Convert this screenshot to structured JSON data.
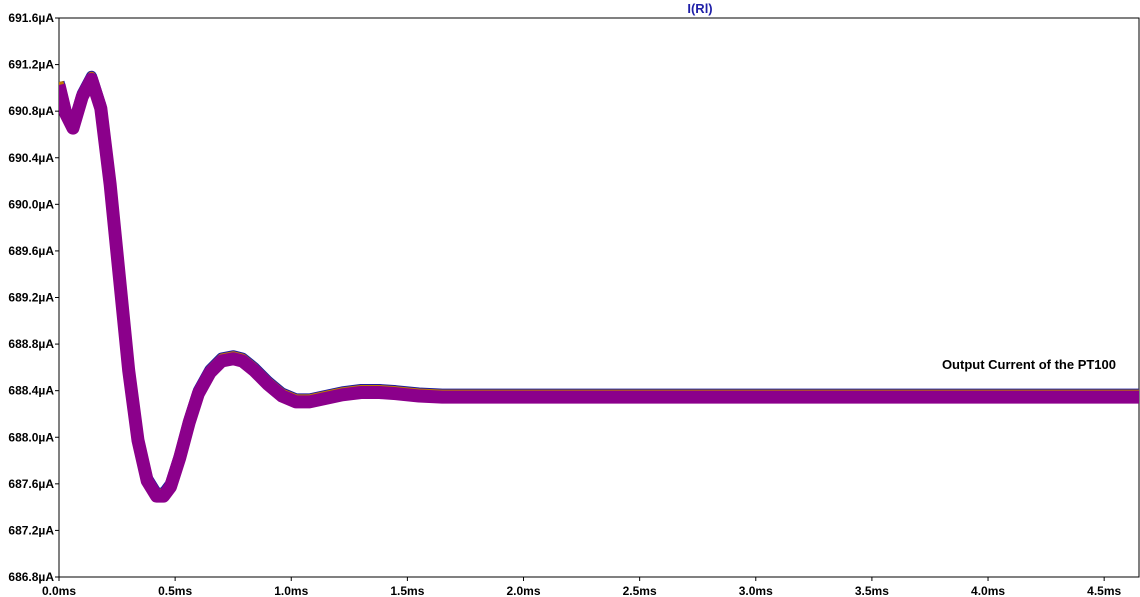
{
  "chart_data": {
    "type": "line",
    "title": "I(Rl)",
    "annotation": "Output Current of the PT100",
    "xlabel": "",
    "ylabel": "",
    "xlim": [
      0,
      4.65
    ],
    "ylim": [
      686.8,
      691.6
    ],
    "x_unit": "ms",
    "y_unit": "µA",
    "x_ticks": [
      "0.0ms",
      "0.5ms",
      "1.0ms",
      "1.5ms",
      "2.0ms",
      "2.5ms",
      "3.0ms",
      "3.5ms",
      "4.0ms",
      "4.5ms"
    ],
    "x_tick_values": [
      0.0,
      0.5,
      1.0,
      1.5,
      2.0,
      2.5,
      3.0,
      3.5,
      4.0,
      4.5
    ],
    "y_ticks": [
      "691.6µA",
      "691.2µA",
      "690.8µA",
      "690.4µA",
      "690.0µA",
      "689.6µA",
      "689.2µA",
      "688.8µA",
      "688.4µA",
      "688.0µA",
      "687.6µA",
      "687.2µA",
      "686.8µA"
    ],
    "y_tick_values": [
      691.6,
      691.2,
      690.8,
      690.4,
      690.0,
      689.6,
      689.2,
      688.8,
      688.4,
      688.0,
      687.6,
      687.2,
      686.8
    ],
    "grid": false,
    "series_colors": {
      "outer": "#1a1aa0",
      "middle": "#c07a00",
      "inner": "#8b008b"
    },
    "series": [
      {
        "x": [
          0.0,
          0.03,
          0.06,
          0.1,
          0.14,
          0.18,
          0.22,
          0.26,
          0.3,
          0.34,
          0.38,
          0.42,
          0.45,
          0.48,
          0.52,
          0.56,
          0.6,
          0.65,
          0.7,
          0.75,
          0.79,
          0.84,
          0.9,
          0.96,
          1.02,
          1.08,
          1.15,
          1.22,
          1.3,
          1.38,
          1.45,
          1.55,
          1.65,
          1.8,
          2.0,
          2.5,
          3.0,
          3.5,
          4.0,
          4.5,
          4.65
        ],
        "y": [
          691.05,
          690.8,
          690.68,
          690.95,
          691.1,
          690.85,
          690.2,
          689.4,
          688.6,
          688.0,
          687.65,
          687.52,
          687.52,
          687.6,
          687.85,
          688.15,
          688.4,
          688.58,
          688.68,
          688.7,
          688.68,
          688.6,
          688.48,
          688.38,
          688.33,
          688.33,
          688.36,
          688.39,
          688.41,
          688.41,
          688.4,
          688.38,
          688.37,
          688.37,
          688.37,
          688.37,
          688.37,
          688.37,
          688.37,
          688.37,
          688.37
        ]
      }
    ]
  }
}
